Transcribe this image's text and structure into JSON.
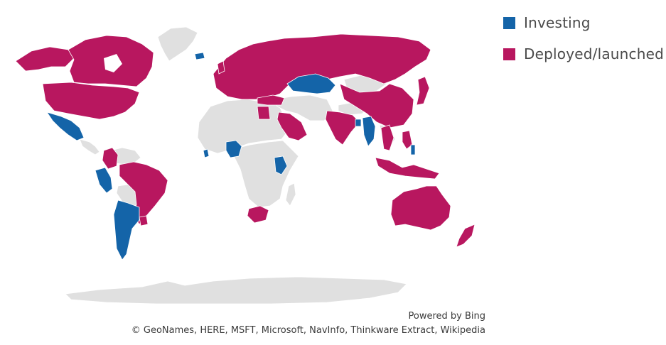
{
  "colors": {
    "investing": "#1464a8",
    "deployed": "#b8175f",
    "none": "#e0e0e0",
    "border": "#ffffff"
  },
  "legend": [
    {
      "label": "Investing",
      "color": "#1464a8"
    },
    {
      "label": "Deployed/launched",
      "color": "#b8175f"
    }
  ],
  "attribution": {
    "line1": "Powered by Bing",
    "line2": "© GeoNames, HERE, MSFT, Microsoft, NavInfo, Thinkware Extract, Wikipedia"
  }
}
